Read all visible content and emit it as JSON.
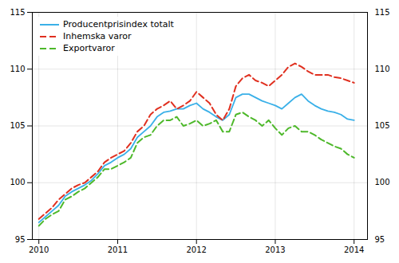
{
  "chart_data": {
    "type": "line",
    "x": [
      2010,
      2010.0833333333333,
      2010.1666666666667,
      2010.25,
      2010.3333333333333,
      2010.4166666666667,
      2010.5,
      2010.5833333333333,
      2010.6666666666667,
      2010.75,
      2010.8333333333333,
      2010.9166666666667,
      2011,
      2011.0833333333333,
      2011.1666666666667,
      2011.25,
      2011.3333333333333,
      2011.4166666666667,
      2011.5,
      2011.5833333333333,
      2011.6666666666667,
      2011.75,
      2011.8333333333333,
      2011.9166666666667,
      2012,
      2012.0833333333333,
      2012.1666666666667,
      2012.25,
      2012.3333333333333,
      2012.4166666666667,
      2012.5,
      2012.5833333333333,
      2012.6666666666667,
      2012.75,
      2012.8333333333333,
      2012.9166666666667,
      2013,
      2013.0833333333333,
      2013.1666666666667,
      2013.25,
      2013.3333333333333,
      2013.4166666666667,
      2013.5,
      2013.5833333333333,
      2013.6666666666667,
      2013.75,
      2013.8333333333333,
      2013.9166666666667,
      2014
    ],
    "series": [
      {
        "name": "Producentprisindex totalt",
        "color": "#3ab0e8",
        "line_style": "solid",
        "values": [
          96.5,
          97.0,
          97.5,
          98.0,
          98.8,
          99.2,
          99.5,
          99.8,
          100.2,
          100.8,
          101.5,
          101.8,
          102.2,
          102.5,
          103.0,
          104.0,
          104.5,
          105.0,
          105.8,
          106.2,
          106.3,
          106.5,
          106.5,
          106.8,
          107.0,
          106.5,
          106.2,
          105.8,
          105.5,
          106.0,
          107.5,
          107.8,
          107.8,
          107.5,
          107.2,
          107.0,
          106.8,
          106.5,
          107.0,
          107.5,
          107.8,
          107.2,
          106.8,
          106.5,
          106.3,
          106.2,
          106.0,
          105.6,
          105.5
        ]
      },
      {
        "name": "Inhemska varor",
        "color": "#e03020",
        "line_style": "dashed",
        "values": [
          96.8,
          97.3,
          97.8,
          98.5,
          99.0,
          99.5,
          99.8,
          100.0,
          100.5,
          101.0,
          101.8,
          102.2,
          102.5,
          102.8,
          103.5,
          104.5,
          105.0,
          106.0,
          106.5,
          106.8,
          107.2,
          106.5,
          106.8,
          107.2,
          108.0,
          107.5,
          107.0,
          106.0,
          105.5,
          106.5,
          108.5,
          109.2,
          109.5,
          109.0,
          108.8,
          108.5,
          109.0,
          109.5,
          110.2,
          110.5,
          110.2,
          109.8,
          109.5,
          109.5,
          109.5,
          109.3,
          109.2,
          109.0,
          108.8
        ]
      },
      {
        "name": "Exportvaror",
        "color": "#4db82a",
        "line_style": "dashed",
        "values": [
          96.2,
          96.8,
          97.2,
          97.5,
          98.5,
          98.8,
          99.2,
          99.5,
          100.0,
          100.5,
          101.2,
          101.2,
          101.5,
          101.8,
          102.2,
          103.5,
          104.0,
          104.2,
          105.0,
          105.5,
          105.5,
          105.8,
          105.0,
          105.2,
          105.5,
          105.0,
          105.2,
          105.5,
          104.5,
          104.5,
          106.0,
          106.2,
          105.8,
          105.5,
          105.0,
          105.5,
          104.8,
          104.2,
          104.8,
          105.0,
          104.5,
          104.5,
          104.2,
          103.8,
          103.5,
          103.2,
          103.0,
          102.5,
          102.2
        ]
      }
    ],
    "xlim": [
      2009.917,
      2014.17
    ],
    "xticks": [
      2010,
      2011,
      2012,
      2013,
      2014
    ],
    "ylim": [
      95,
      115
    ],
    "yticks": [
      95,
      100,
      105,
      110,
      115
    ],
    "grid": true,
    "legend": "upper left"
  }
}
